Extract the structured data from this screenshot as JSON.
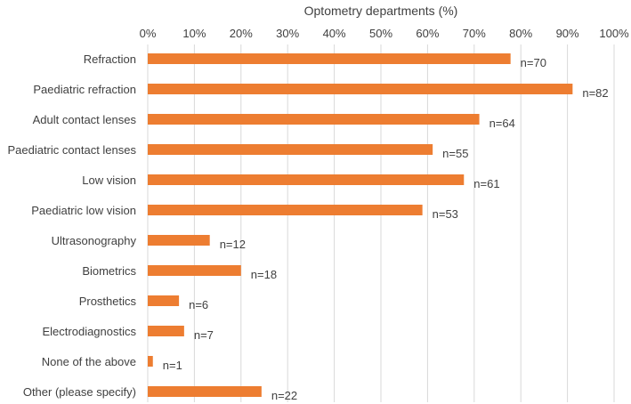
{
  "chart_data": {
    "type": "bar",
    "orientation": "horizontal",
    "title": "",
    "xlabel": "Optometry departments (%)",
    "ylabel": "",
    "xlim": [
      0,
      100
    ],
    "xaxis_position": "top",
    "x_ticks": [
      "0%",
      "10%",
      "20%",
      "30%",
      "40%",
      "50%",
      "60%",
      "70%",
      "80%",
      "90%",
      "100%"
    ],
    "grid": true,
    "bar_color": "#ED7D31",
    "categories": [
      "Refraction",
      "Paediatric refraction",
      "Adult contact lenses",
      "Paediatric contact lenses",
      "Low vision",
      "Paediatric low vision",
      "Ultrasonography",
      "Biometrics",
      "Prosthetics",
      "Electrodiagnostics",
      "None of the above",
      "Other (please specify)"
    ],
    "values": [
      77.8,
      91.1,
      71.1,
      61.1,
      67.8,
      58.9,
      13.3,
      20.0,
      6.7,
      7.8,
      1.1,
      24.4
    ],
    "labels": [
      "n=70",
      "n=82",
      "n=64",
      "n=55",
      "n=61",
      "n=53",
      "n=12",
      "n=18",
      "n=6",
      "n=7",
      "n=1",
      "n=22"
    ]
  }
}
